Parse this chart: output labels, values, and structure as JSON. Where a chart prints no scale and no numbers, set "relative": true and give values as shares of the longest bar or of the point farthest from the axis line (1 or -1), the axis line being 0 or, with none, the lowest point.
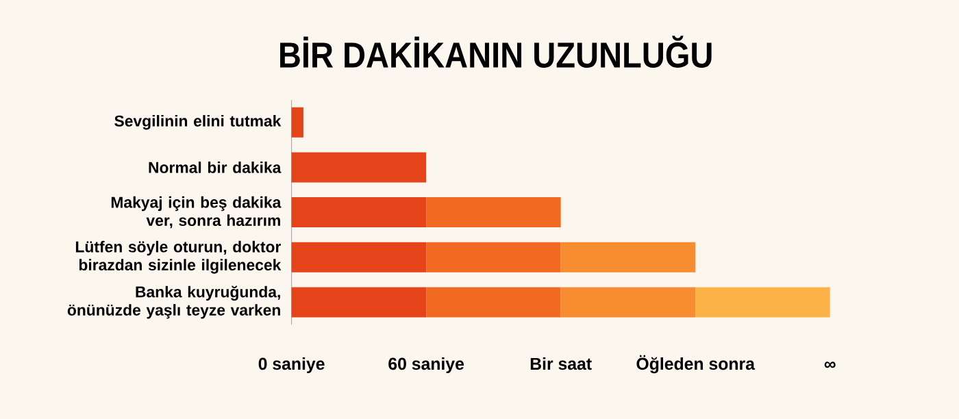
{
  "chart_data": {
    "type": "bar",
    "orientation": "horizontal",
    "stacked": true,
    "relative": true,
    "title": "BİR DAKİKANIN UZUNLUĞU",
    "categories": [
      "Sevgilinin elini tutmak",
      "Normal bir dakika",
      "Makyaj için beş dakika ver, sonra hazırım",
      "Lütfen söyle oturun, doktor birazdan sizinle ilgilenecek",
      "Banka kuyruğunda, önünüzde yaşlı teyze varken"
    ],
    "series": [
      {
        "color": "#e5431a",
        "values": [
          0.022,
          0.25,
          0.25,
          0.25,
          0.25
        ]
      },
      {
        "color": "#f26a22",
        "values": [
          null,
          null,
          0.25,
          0.25,
          0.25
        ]
      },
      {
        "color": "#f78c30",
        "values": [
          null,
          null,
          null,
          0.25,
          0.25
        ]
      },
      {
        "color": "#fbb347",
        "values": [
          null,
          null,
          null,
          null,
          0.25
        ]
      }
    ],
    "annotations": [
      "0 saniye",
      "60 saniye",
      "Bir saat",
      "Öğleden sonra",
      "∞"
    ]
  }
}
